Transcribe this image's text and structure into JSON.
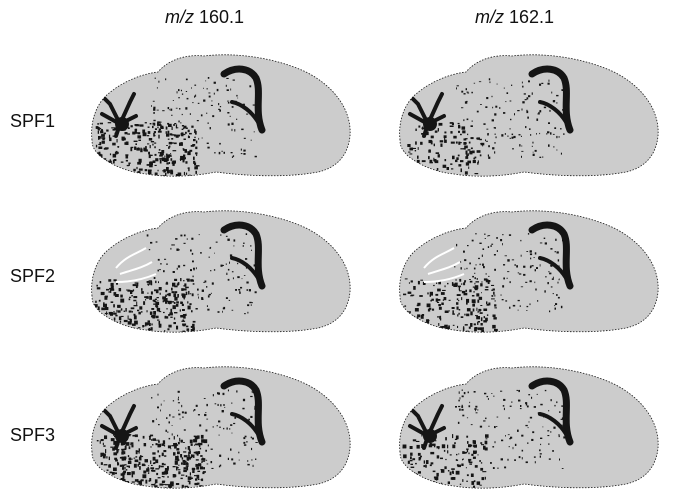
{
  "figure": {
    "columns": [
      {
        "prefix": "m/z",
        "value": "160.1"
      },
      {
        "prefix": "m/z",
        "value": "162.1"
      }
    ],
    "rows": [
      {
        "label": "SPF1"
      },
      {
        "label": "SPF2"
      },
      {
        "label": "SPF3"
      }
    ],
    "colors": {
      "tissue": "#cccccc",
      "signal": "#151515",
      "background": "#ffffff"
    }
  }
}
